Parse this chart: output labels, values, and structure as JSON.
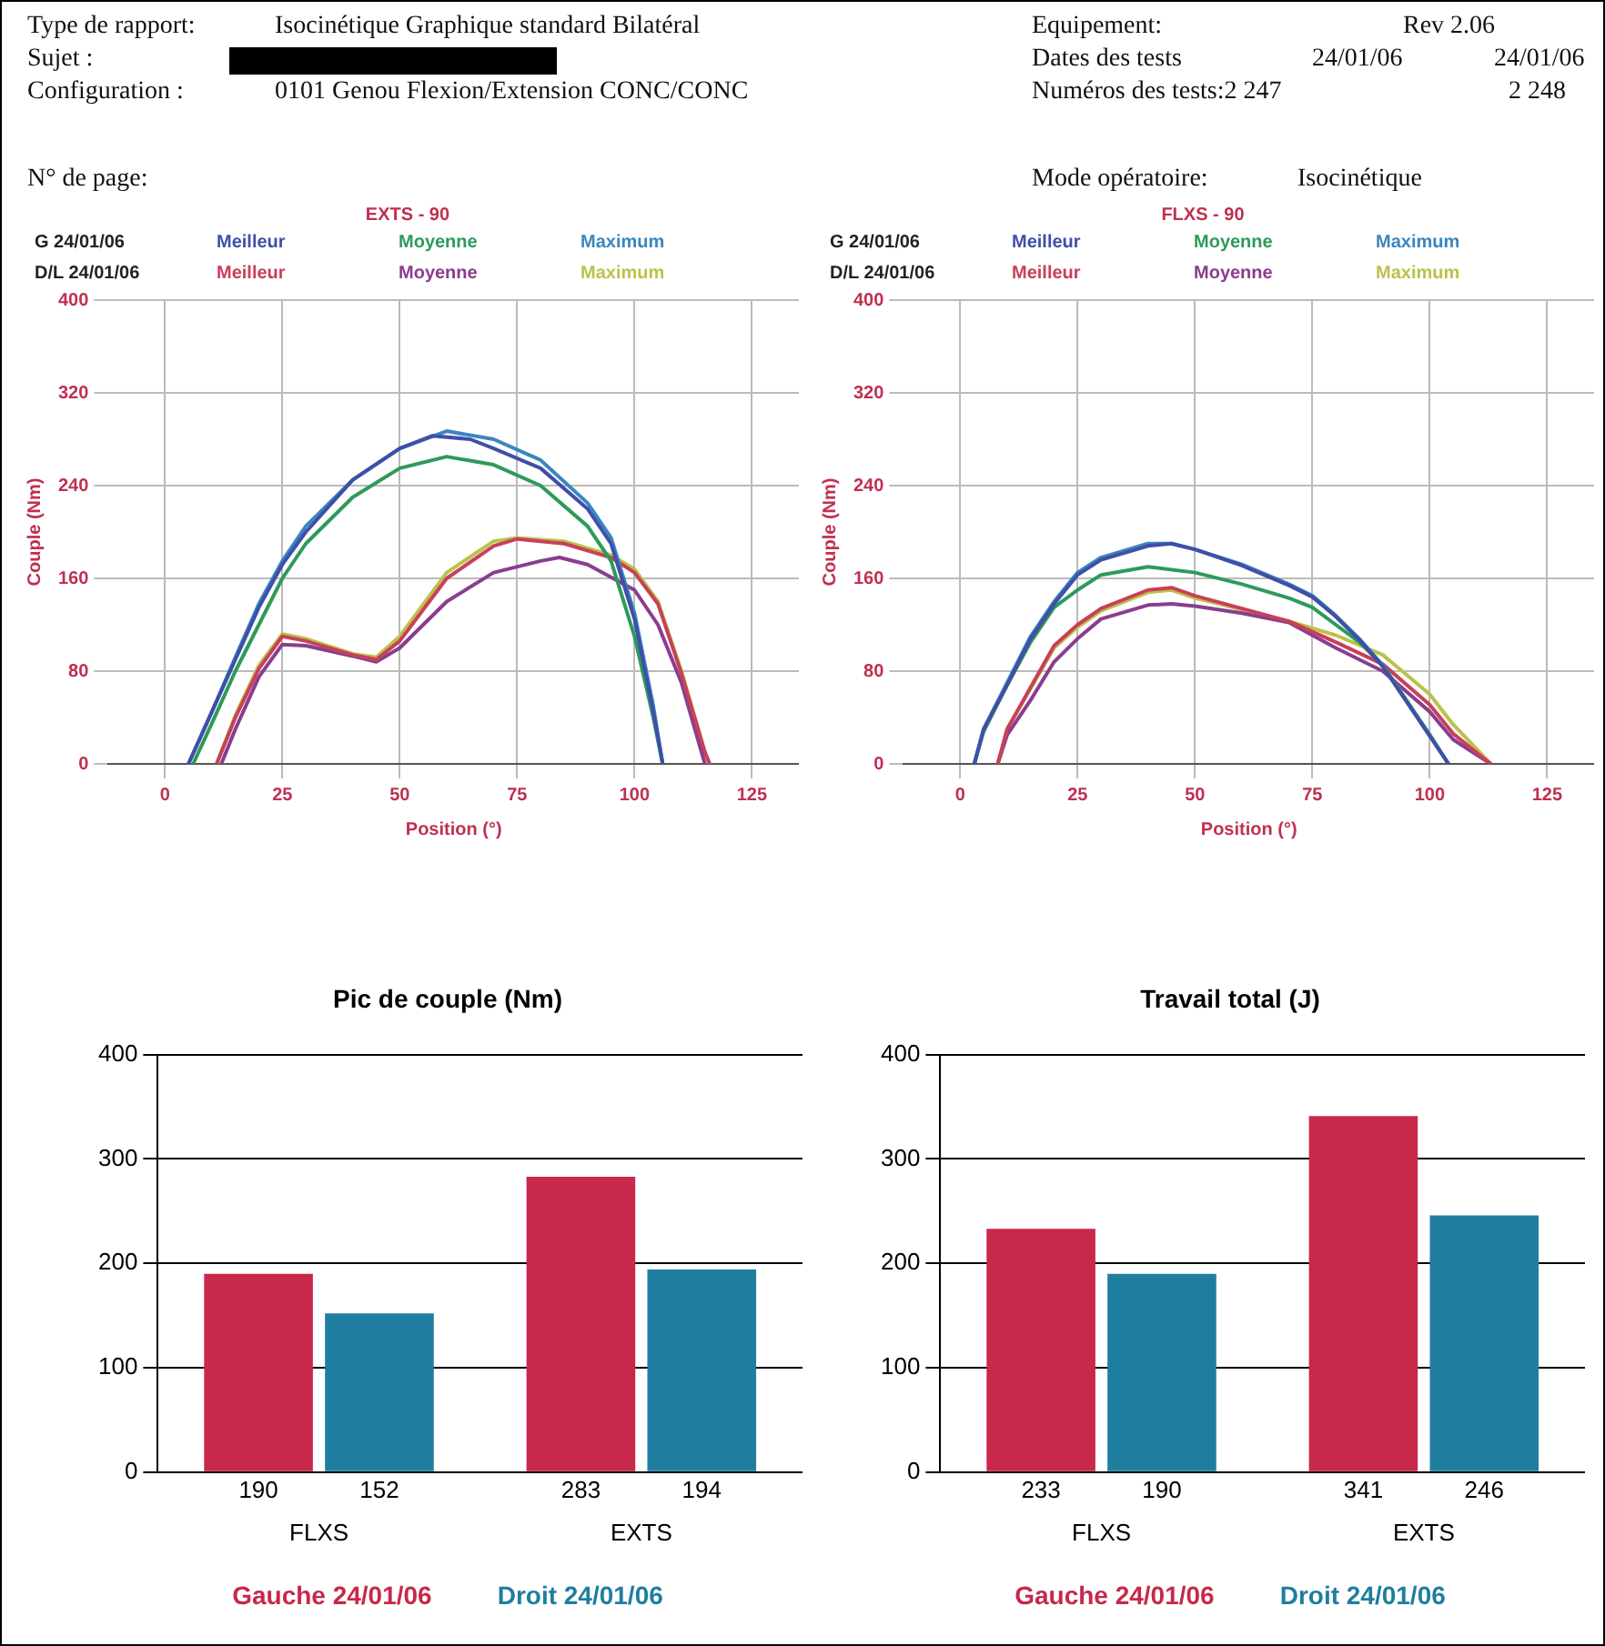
{
  "chart_data": [
    {
      "type": "other",
      "annotations": [
        "Type de rapport:",
        "Isocinétique Graphique standard Bilatéral",
        "Sujet :",
        "Configuration :",
        "0101 Genou Flexion/Extension CONC/CONC",
        "N° de page:",
        "Equipement:",
        "Rev 2.06",
        "Dates des tests",
        "24/01/06",
        "24/01/06",
        "Numéros des tests:2 247",
        "2 248",
        "Mode opératoire:",
        "Isocinétique"
      ]
    },
    {
      "type": "line",
      "title": "EXTS - 90",
      "xlabel": "Position (°)",
      "ylabel": "Couple (Nm)",
      "annotations": [
        "G 24/01/06",
        "D/L 24/01/06"
      ],
      "xlim": [
        -12,
        135
      ],
      "ylim": [
        0,
        400
      ],
      "xticks": [
        0,
        25,
        50,
        75,
        100,
        125
      ],
      "yticks": [
        0,
        80,
        160,
        240,
        320,
        400
      ],
      "grid": true,
      "legend": "top",
      "marker": "none",
      "series": [
        {
          "name": "Meilleur",
          "color": "#3f4fa8",
          "x": [
            5,
            10,
            15,
            20,
            25,
            30,
            40,
            50,
            57,
            65,
            70,
            80,
            90,
            95,
            100,
            104,
            106
          ],
          "values": [
            0,
            45,
            90,
            135,
            172,
            200,
            245,
            272,
            283,
            280,
            272,
            255,
            220,
            190,
            125,
            45,
            0
          ]
        },
        {
          "name": "Moyenne",
          "color": "#2e9a5a",
          "x": [
            6,
            10,
            15,
            20,
            25,
            30,
            40,
            50,
            60,
            70,
            80,
            90,
            95,
            100,
            104,
            106
          ],
          "values": [
            0,
            35,
            80,
            120,
            160,
            190,
            230,
            255,
            265,
            258,
            240,
            205,
            175,
            110,
            40,
            0
          ]
        },
        {
          "name": "Maximum",
          "color": "#3a86c0",
          "x": [
            5,
            10,
            15,
            20,
            25,
            30,
            40,
            50,
            60,
            70,
            80,
            90,
            95,
            100,
            104,
            106
          ],
          "values": [
            0,
            45,
            92,
            138,
            175,
            205,
            245,
            272,
            287,
            280,
            262,
            225,
            195,
            130,
            50,
            0
          ]
        },
        {
          "name": "Meilleur",
          "color": "#c8405a",
          "x": [
            11,
            15,
            20,
            25,
            30,
            40,
            45,
            50,
            60,
            70,
            75,
            85,
            95,
            100,
            105,
            110,
            115,
            116
          ],
          "values": [
            0,
            40,
            82,
            110,
            106,
            94,
            90,
            106,
            160,
            188,
            194,
            190,
            178,
            165,
            138,
            78,
            10,
            0
          ]
        },
        {
          "name": "Moyenne",
          "color": "#8a3d8e",
          "x": [
            12,
            15,
            20,
            25,
            30,
            40,
            45,
            50,
            60,
            70,
            80,
            84,
            90,
            100,
            105,
            110,
            115
          ],
          "values": [
            0,
            30,
            75,
            103,
            102,
            93,
            88,
            100,
            140,
            165,
            175,
            178,
            172,
            150,
            120,
            70,
            0
          ]
        },
        {
          "name": "Maximum",
          "color": "#bcc24a",
          "x": [
            11,
            15,
            20,
            25,
            30,
            40,
            45,
            50,
            60,
            70,
            75,
            85,
            95,
            100,
            105,
            110,
            115,
            116
          ],
          "values": [
            0,
            42,
            85,
            112,
            108,
            95,
            92,
            110,
            165,
            192,
            195,
            192,
            180,
            168,
            140,
            80,
            10,
            0
          ]
        }
      ]
    },
    {
      "type": "line",
      "title": "FLXS - 90",
      "xlabel": "Position (°)",
      "ylabel": "Couple (Nm)",
      "annotations": [
        "G 24/01/06",
        "D/L 24/01/06"
      ],
      "xlim": [
        -12,
        135
      ],
      "ylim": [
        0,
        400
      ],
      "xticks": [
        0,
        25,
        50,
        75,
        100,
        125
      ],
      "yticks": [
        0,
        80,
        160,
        240,
        320,
        400
      ],
      "grid": true,
      "legend": "top",
      "marker": "none",
      "series": [
        {
          "name": "Meilleur",
          "color": "#3f4fa8",
          "x": [
            3,
            5,
            10,
            15,
            20,
            25,
            30,
            40,
            45,
            50,
            60,
            70,
            75,
            80,
            85,
            90,
            95,
            100,
            104
          ],
          "values": [
            0,
            30,
            68,
            108,
            138,
            163,
            176,
            188,
            190,
            185,
            171,
            154,
            144,
            127,
            107,
            84,
            54,
            24,
            0
          ]
        },
        {
          "name": "Moyenne",
          "color": "#2e9a5a",
          "x": [
            3,
            5,
            10,
            15,
            20,
            25,
            30,
            40,
            50,
            60,
            70,
            75,
            80,
            85,
            90,
            95,
            100,
            104
          ],
          "values": [
            0,
            28,
            68,
            105,
            135,
            150,
            163,
            170,
            165,
            155,
            143,
            135,
            120,
            105,
            85,
            55,
            25,
            0
          ]
        },
        {
          "name": "Maximum",
          "color": "#3a86c0",
          "x": [
            3,
            5,
            10,
            15,
            20,
            25,
            30,
            40,
            45,
            50,
            60,
            70,
            75,
            80,
            85,
            90,
            95,
            100,
            104
          ],
          "values": [
            0,
            30,
            70,
            110,
            140,
            165,
            178,
            190,
            190,
            185,
            172,
            155,
            145,
            128,
            108,
            85,
            55,
            25,
            0
          ]
        },
        {
          "name": "Meilleur",
          "color": "#c8405a",
          "x": [
            8,
            10,
            15,
            20,
            25,
            30,
            40,
            45,
            50,
            60,
            70,
            80,
            90,
            100,
            105,
            113
          ],
          "values": [
            0,
            30,
            66,
            102,
            120,
            134,
            150,
            152,
            145,
            134,
            123,
            105,
            86,
            51,
            26,
            0
          ]
        },
        {
          "name": "Moyenne",
          "color": "#8a3d8e",
          "x": [
            8,
            10,
            15,
            20,
            25,
            30,
            40,
            45,
            50,
            60,
            70,
            80,
            90,
            100,
            105,
            113
          ],
          "values": [
            0,
            25,
            55,
            88,
            108,
            125,
            137,
            138,
            136,
            130,
            122,
            100,
            80,
            45,
            21,
            0
          ]
        },
        {
          "name": "Maximum",
          "color": "#bcc24a",
          "x": [
            8,
            10,
            15,
            20,
            25,
            30,
            40,
            45,
            50,
            60,
            70,
            80,
            90,
            100,
            105,
            113
          ],
          "values": [
            0,
            30,
            65,
            100,
            118,
            132,
            148,
            150,
            143,
            133,
            123,
            111,
            94,
            60,
            34,
            0
          ]
        }
      ]
    },
    {
      "type": "bar",
      "title": "Pic de couple (Nm)",
      "categories": [
        "FLXS",
        "EXTS"
      ],
      "ylim": [
        0,
        400
      ],
      "yticks": [
        0,
        100,
        200,
        300,
        400
      ],
      "grid": "y",
      "legend": "bottom",
      "data_labels": true,
      "series": [
        {
          "name": "Gauche 24/01/06",
          "color": "#c8284a",
          "values": [
            190,
            283
          ]
        },
        {
          "name": "Droit 24/01/06",
          "color": "#1f7ea0",
          "values": [
            152,
            194
          ]
        }
      ]
    },
    {
      "type": "bar",
      "title": "Travail total (J)",
      "categories": [
        "FLXS",
        "EXTS"
      ],
      "ylim": [
        0,
        400
      ],
      "yticks": [
        0,
        100,
        200,
        300,
        400
      ],
      "grid": "y",
      "legend": "bottom",
      "data_labels": true,
      "series": [
        {
          "name": "Gauche 24/01/06",
          "color": "#c8284a",
          "values": [
            233,
            341
          ]
        },
        {
          "name": "Droit 24/01/06",
          "color": "#1f7ea0",
          "values": [
            190,
            246
          ]
        }
      ]
    }
  ]
}
